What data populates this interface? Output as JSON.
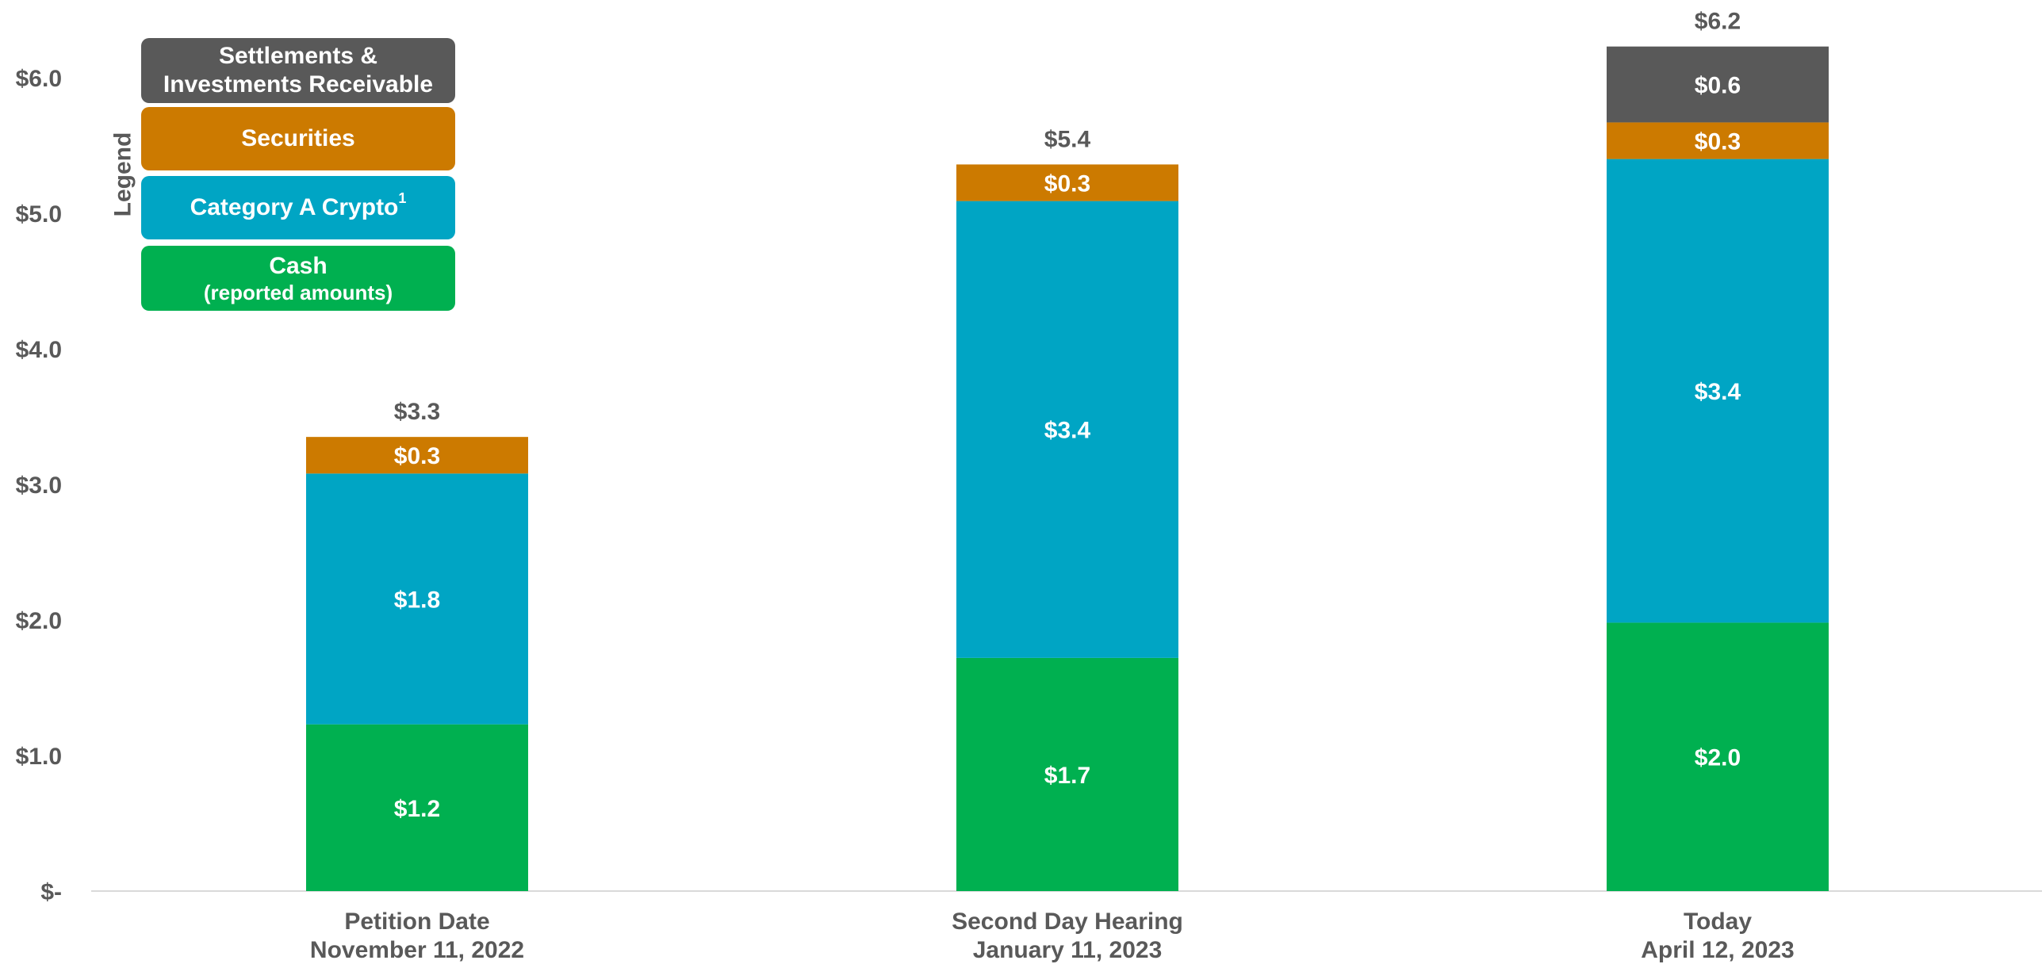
{
  "chart_data": {
    "type": "bar",
    "stacked": true,
    "categories": [
      {
        "line1": "Petition Date",
        "line2": "November 11, 2022"
      },
      {
        "line1": "Second Day Hearing",
        "line2": "January 11, 2023"
      },
      {
        "line1": "Today",
        "line2": "April 12, 2023"
      }
    ],
    "series": [
      {
        "name": "Cash (reported amounts)",
        "color": "#00b050",
        "values": [
          1.23,
          1.72,
          1.98
        ],
        "labels": [
          "$1.2",
          "$1.7",
          "$2.0"
        ]
      },
      {
        "name": "Category A Crypto",
        "color": "#00a5c4",
        "values": [
          1.85,
          3.37,
          3.42
        ],
        "labels": [
          "$1.8",
          "$3.4",
          "$3.4"
        ]
      },
      {
        "name": "Securities",
        "color": "#cc7a00",
        "values": [
          0.27,
          0.27,
          0.27
        ],
        "labels": [
          "$0.3",
          "$0.3",
          "$0.3"
        ]
      },
      {
        "name": "Settlements & Investments Receivable",
        "color": "#595959",
        "values": [
          0,
          0,
          0.56
        ],
        "labels": [
          "",
          "",
          "$0.6"
        ]
      }
    ],
    "totals": [
      "$3.3",
      "$5.4",
      "$6.2"
    ],
    "ylim": [
      0,
      6.2
    ],
    "yticks": [
      0,
      1,
      2,
      3,
      4,
      5,
      6
    ],
    "ytick_labels": [
      "$-",
      "$1.0",
      "$2.0",
      "$3.0",
      "$4.0",
      "$5.0",
      "$6.0"
    ],
    "grid": false,
    "legend_placement": "top-left"
  },
  "legend": {
    "title": "Legend",
    "items": [
      {
        "line1": "Settlements &",
        "line2": "Investments Receivable",
        "color": "#595959"
      },
      {
        "line1": "Securities",
        "line2": "",
        "color": "#cc7a00"
      },
      {
        "line1": "Category A Crypto",
        "sup": "1",
        "line2": "",
        "color": "#00a5c4"
      },
      {
        "line1": "Cash",
        "line2": "(reported amounts)",
        "color": "#00b050"
      }
    ]
  }
}
